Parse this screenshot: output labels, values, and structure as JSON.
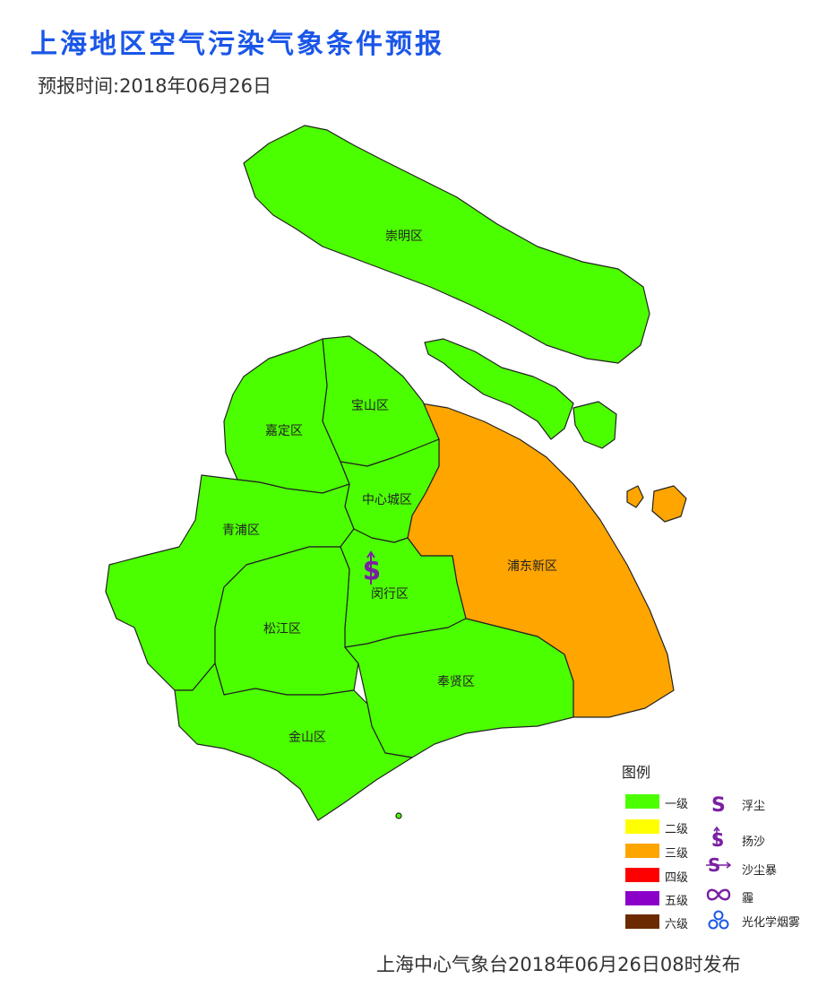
{
  "header": {
    "title": "上海地区空气污染气象条件预报",
    "forecast_time": "预报时间:2018年06月26日"
  },
  "districts": [
    {
      "key": "chongming",
      "name": "崇明区",
      "level": "一级"
    },
    {
      "key": "baoshan",
      "name": "宝山区",
      "level": "一级"
    },
    {
      "key": "jiading",
      "name": "嘉定区",
      "level": "一级"
    },
    {
      "key": "center",
      "name": "中心城区",
      "level": "一级"
    },
    {
      "key": "qingpu",
      "name": "青浦区",
      "level": "一级"
    },
    {
      "key": "pudong",
      "name": "浦东新区",
      "level": "三级"
    },
    {
      "key": "minhang",
      "name": "闵行区",
      "level": "一级"
    },
    {
      "key": "songjiang",
      "name": "松江区",
      "level": "一级"
    },
    {
      "key": "fengxian",
      "name": "奉贤区",
      "level": "一级"
    },
    {
      "key": "jinshan",
      "name": "金山区",
      "level": "一级"
    }
  ],
  "map_symbols": [
    {
      "district": "minhang",
      "symbol": "扬沙",
      "icon": "dollar-s-icon",
      "color": "#7a1fa2"
    }
  ],
  "legend": {
    "title": "图例",
    "levels": [
      {
        "label": "一级",
        "color": "#4cff00"
      },
      {
        "label": "二级",
        "color": "#ffff00"
      },
      {
        "label": "三级",
        "color": "#ffa500"
      },
      {
        "label": "四级",
        "color": "#ff0000"
      },
      {
        "label": "五级",
        "color": "#8b00c8"
      },
      {
        "label": "六级",
        "color": "#6b2a00"
      }
    ],
    "symbols": [
      {
        "label": "浮尘",
        "icon": "s-icon"
      },
      {
        "label": "扬沙",
        "icon": "dollar-s-icon"
      },
      {
        "label": "沙尘暴",
        "icon": "s-arrow-icon"
      },
      {
        "label": "霾",
        "icon": "infinity-icon"
      },
      {
        "label": "光化学烟雾",
        "icon": "three-circles-icon"
      }
    ]
  },
  "footer": {
    "publish": "上海中心气象台2018年06月26日08时发布"
  }
}
